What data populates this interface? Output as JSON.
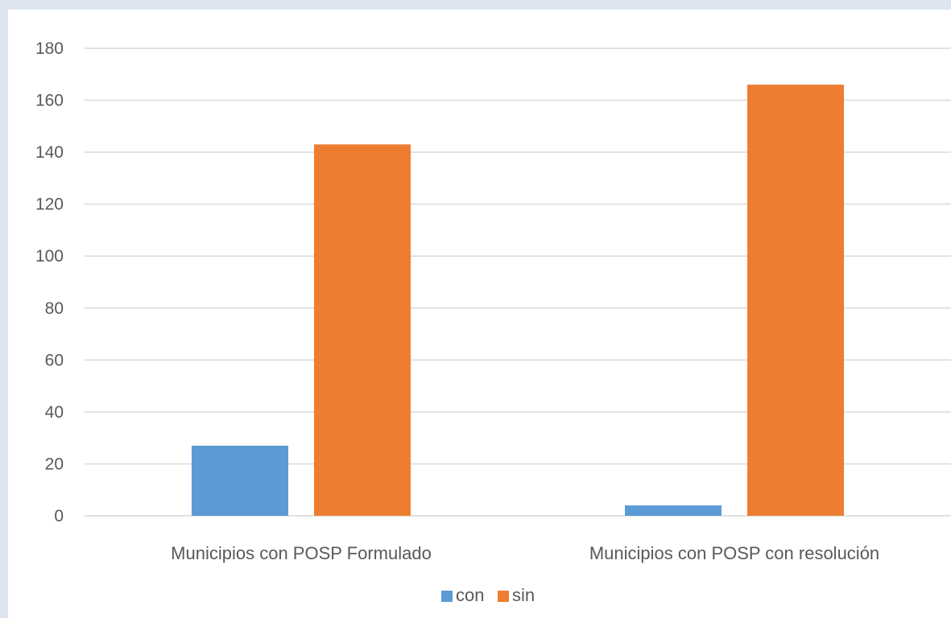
{
  "chart_data": {
    "type": "bar",
    "title": "",
    "xlabel": "",
    "ylabel": "",
    "categories": [
      "Municipios con POSP Formulado",
      "Municipios con POSP con resolución"
    ],
    "series": [
      {
        "name": "con",
        "color": "#5b9bd5",
        "values": [
          27,
          4
        ]
      },
      {
        "name": "sin",
        "color": "#ed7d31",
        "values": [
          143,
          166
        ]
      }
    ],
    "ylim": [
      0,
      180
    ],
    "yticks": [
      0,
      20,
      40,
      60,
      80,
      100,
      120,
      140,
      160,
      180
    ],
    "grid": true,
    "legend_position": "bottom"
  }
}
